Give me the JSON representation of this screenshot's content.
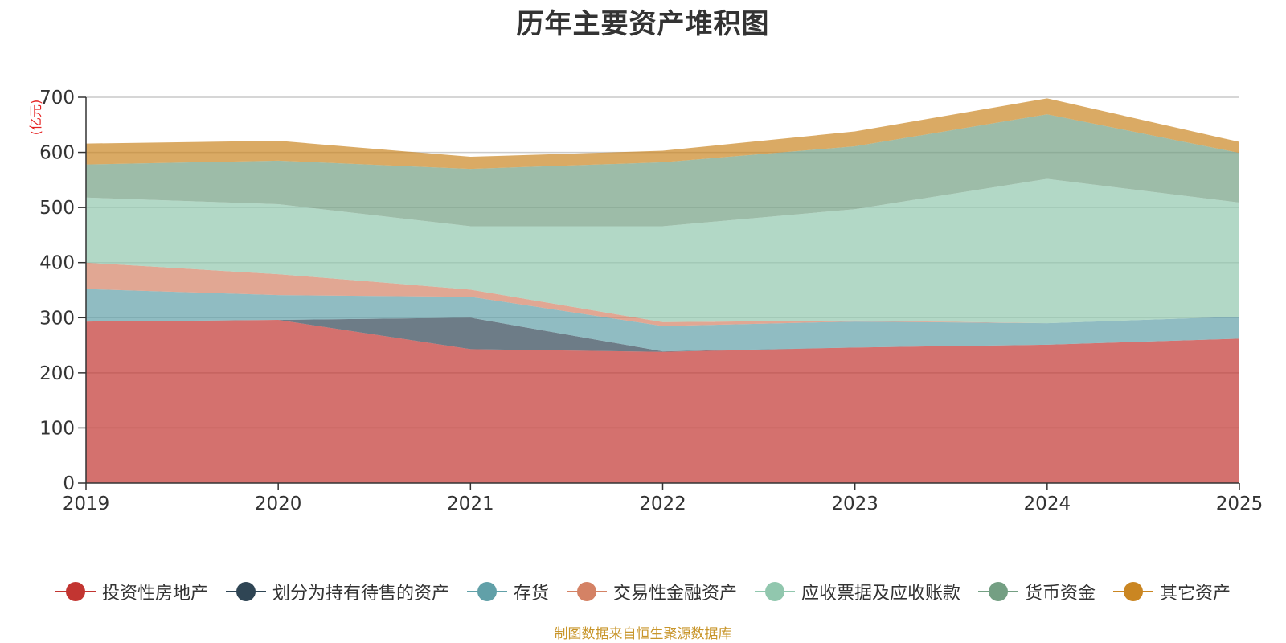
{
  "chart_data": {
    "type": "area",
    "stacked": true,
    "title": "历年主要资产堆积图",
    "ylabel": "(亿元)",
    "xlabel": "",
    "categories": [
      "2019",
      "2020",
      "2021",
      "2022",
      "2023",
      "2024",
      "2025"
    ],
    "ylim": [
      0,
      700
    ],
    "yticks": [
      "0",
      "100",
      "200",
      "300",
      "400",
      "500",
      "600",
      "700"
    ],
    "grid": true,
    "legend_position": "bottom",
    "series": [
      {
        "name": "投资性房地产",
        "color": "#c23531",
        "values": [
          293,
          296,
          243,
          238,
          246,
          251,
          262
        ]
      },
      {
        "name": "划分为持有待售的资产",
        "color": "#2f4554",
        "values": [
          0,
          0,
          57,
          1,
          0,
          0,
          0
        ]
      },
      {
        "name": "存货",
        "color": "#61a0a8",
        "values": [
          59,
          45,
          38,
          46,
          47,
          39,
          40
        ]
      },
      {
        "name": "交易性金融资产",
        "color": "#d48265",
        "values": [
          48,
          38,
          13,
          7,
          2,
          0,
          0
        ]
      },
      {
        "name": "应收票据及应收账款",
        "color": "#91c7ae",
        "values": [
          118,
          127,
          115,
          174,
          202,
          262,
          207
        ]
      },
      {
        "name": "货币资金",
        "color": "#749f83",
        "values": [
          60,
          79,
          104,
          116,
          114,
          117,
          90
        ]
      },
      {
        "name": "其它资产",
        "color": "#ca8622",
        "values": [
          38,
          36,
          22,
          21,
          27,
          29,
          20
        ]
      }
    ]
  },
  "footer": {
    "source": "制图数据来自恒生聚源数据库"
  }
}
